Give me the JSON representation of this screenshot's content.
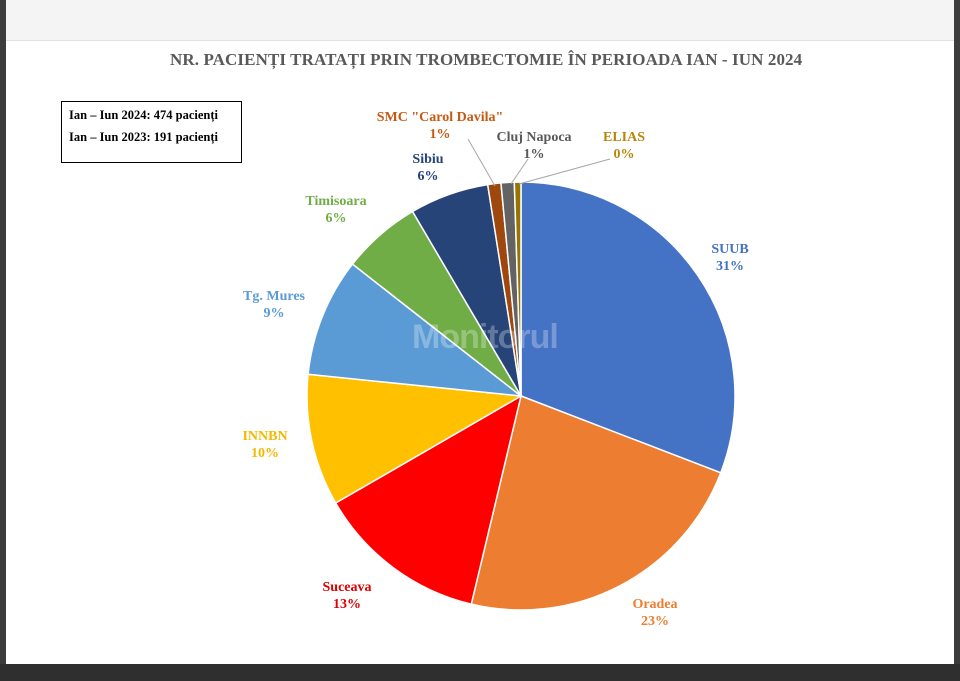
{
  "chart_data": {
    "type": "pie",
    "title": "NR. PACIENȚI TRATAȚI PRIN TROMBECTOMIE ÎN PERIOADA IAN - IUN 2024",
    "annotations": [
      "Ian – Iun 2024: 474 pacienți",
      "Ian – Iun 2023: 191 pacienți"
    ],
    "slices": [
      {
        "label": "SUUB",
        "value": 31,
        "value_text": "31%",
        "color": "#4472C4",
        "label_color": "#4472C4"
      },
      {
        "label": "Oradea",
        "value": 23,
        "value_text": "23%",
        "color": "#ED7D31",
        "label_color": "#ED7D31"
      },
      {
        "label": "Suceava",
        "value": 13,
        "value_text": "13%",
        "color": "#FF0000",
        "label_color": "#E00000"
      },
      {
        "label": "INNBN",
        "value": 10,
        "value_text": "10%",
        "color": "#FFC000",
        "label_color": "#F5B800"
      },
      {
        "label": "Tg. Mures",
        "value": 9,
        "value_text": "9%",
        "color": "#5B9BD5",
        "label_color": "#5B9BD5"
      },
      {
        "label": "Timisoara",
        "value": 6,
        "value_text": "6%",
        "color": "#70AD47",
        "label_color": "#70AD47"
      },
      {
        "label": "Sibiu",
        "value": 6,
        "value_text": "6%",
        "color": "#264478",
        "label_color": "#264478"
      },
      {
        "label": "SMC \"Carol Davila\"",
        "value": 1,
        "value_text": "1%",
        "color": "#9E480E",
        "label_color": "#C55A11"
      },
      {
        "label": "Cluj Napoca",
        "value": 1,
        "value_text": "1%",
        "color": "#636363",
        "label_color": "#595959"
      },
      {
        "label": "ELIAS",
        "value": 0.5,
        "value_text": "0%",
        "color": "#997300",
        "label_color": "#B8860B"
      }
    ]
  },
  "watermark": "Monitorul"
}
